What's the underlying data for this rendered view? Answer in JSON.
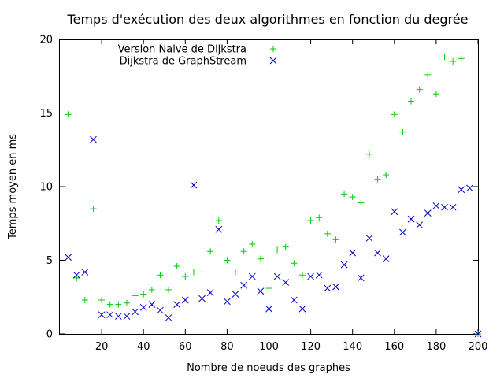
{
  "chart_data": {
    "type": "scatter",
    "title": "Temps d'exécution des deux algorithmes en fonction du degrée",
    "xlabel": "Nombre de noeuds des graphes",
    "ylabel": "Temps moyen en ms",
    "xlim": [
      0,
      200
    ],
    "ylim": [
      0,
      20
    ],
    "xticks": [
      20,
      40,
      60,
      80,
      100,
      120,
      140,
      160,
      180,
      200
    ],
    "yticks": [
      0,
      5,
      10,
      15,
      20
    ],
    "legend_position": "top-left",
    "grid": false,
    "series": [
      {
        "name": "Version Naive de Dijkstra",
        "marker": "plus",
        "color": "#00cc00",
        "x": [
          4,
          8,
          12,
          16,
          20,
          24,
          28,
          32,
          36,
          40,
          44,
          48,
          52,
          56,
          60,
          64,
          68,
          72,
          76,
          80,
          84,
          88,
          92,
          96,
          100,
          104,
          108,
          112,
          116,
          120,
          124,
          128,
          132,
          136,
          140,
          144,
          148,
          152,
          156,
          160,
          164,
          168,
          172,
          176,
          180,
          184,
          188,
          192,
          200
        ],
        "y": [
          14.9,
          3.8,
          2.3,
          8.5,
          2.3,
          2.0,
          2.0,
          2.1,
          2.6,
          2.7,
          3.0,
          4.0,
          3.0,
          4.6,
          3.9,
          4.2,
          4.2,
          5.6,
          7.7,
          5.0,
          4.2,
          5.6,
          6.1,
          5.1,
          3.1,
          5.7,
          5.9,
          4.8,
          4.0,
          7.7,
          7.9,
          6.8,
          6.4,
          9.5,
          9.3,
          8.9,
          12.2,
          10.5,
          10.8,
          14.9,
          13.7,
          15.8,
          16.6,
          17.6,
          16.3,
          18.8,
          18.5,
          18.7,
          0.0
        ]
      },
      {
        "name": "Dijkstra de  GraphStream",
        "marker": "x",
        "color": "#0000cc",
        "x": [
          4,
          8,
          12,
          16,
          20,
          24,
          28,
          32,
          36,
          40,
          44,
          48,
          52,
          56,
          60,
          64,
          68,
          72,
          76,
          80,
          84,
          88,
          92,
          96,
          100,
          104,
          108,
          112,
          116,
          120,
          124,
          128,
          132,
          136,
          140,
          144,
          148,
          152,
          156,
          160,
          164,
          168,
          172,
          176,
          180,
          184,
          188,
          192,
          196,
          200
        ],
        "y": [
          5.2,
          4.0,
          4.2,
          13.2,
          1.3,
          1.3,
          1.2,
          1.2,
          1.5,
          1.8,
          2.0,
          1.6,
          1.1,
          2.0,
          2.3,
          10.1,
          2.4,
          2.8,
          7.1,
          2.2,
          2.7,
          3.3,
          3.9,
          2.9,
          1.7,
          3.9,
          3.5,
          2.3,
          1.7,
          3.9,
          4.0,
          3.1,
          3.2,
          4.7,
          5.5,
          3.8,
          6.5,
          5.5,
          5.1,
          8.3,
          6.9,
          7.8,
          7.4,
          8.2,
          8.7,
          8.6,
          8.6,
          9.8,
          9.9,
          0.0
        ]
      }
    ]
  }
}
